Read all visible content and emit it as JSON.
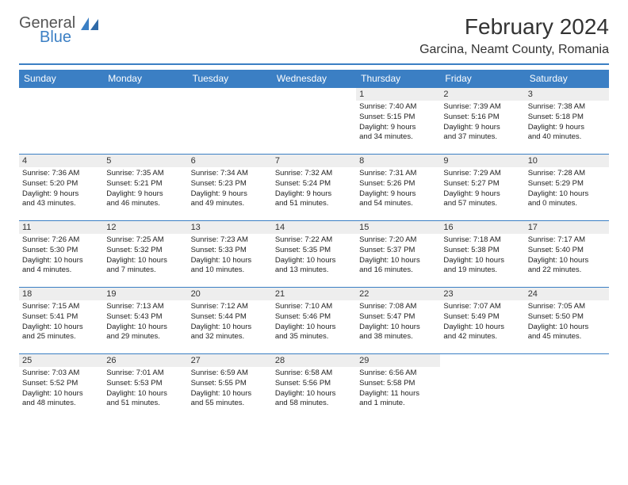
{
  "logo": {
    "line1": "General",
    "line2": "Blue",
    "color_gray": "#555555",
    "color_blue": "#3b7fc4"
  },
  "title": "February 2024",
  "location": "Garcina, Neamt County, Romania",
  "header_bg": "#3b7fc4",
  "daynum_bg": "#eeeeee",
  "weekdays": [
    "Sunday",
    "Monday",
    "Tuesday",
    "Wednesday",
    "Thursday",
    "Friday",
    "Saturday"
  ],
  "weeks": [
    [
      null,
      null,
      null,
      null,
      {
        "n": "1",
        "sr": "Sunrise: 7:40 AM",
        "ss": "Sunset: 5:15 PM",
        "dl1": "Daylight: 9 hours",
        "dl2": "and 34 minutes."
      },
      {
        "n": "2",
        "sr": "Sunrise: 7:39 AM",
        "ss": "Sunset: 5:16 PM",
        "dl1": "Daylight: 9 hours",
        "dl2": "and 37 minutes."
      },
      {
        "n": "3",
        "sr": "Sunrise: 7:38 AM",
        "ss": "Sunset: 5:18 PM",
        "dl1": "Daylight: 9 hours",
        "dl2": "and 40 minutes."
      }
    ],
    [
      {
        "n": "4",
        "sr": "Sunrise: 7:36 AM",
        "ss": "Sunset: 5:20 PM",
        "dl1": "Daylight: 9 hours",
        "dl2": "and 43 minutes."
      },
      {
        "n": "5",
        "sr": "Sunrise: 7:35 AM",
        "ss": "Sunset: 5:21 PM",
        "dl1": "Daylight: 9 hours",
        "dl2": "and 46 minutes."
      },
      {
        "n": "6",
        "sr": "Sunrise: 7:34 AM",
        "ss": "Sunset: 5:23 PM",
        "dl1": "Daylight: 9 hours",
        "dl2": "and 49 minutes."
      },
      {
        "n": "7",
        "sr": "Sunrise: 7:32 AM",
        "ss": "Sunset: 5:24 PM",
        "dl1": "Daylight: 9 hours",
        "dl2": "and 51 minutes."
      },
      {
        "n": "8",
        "sr": "Sunrise: 7:31 AM",
        "ss": "Sunset: 5:26 PM",
        "dl1": "Daylight: 9 hours",
        "dl2": "and 54 minutes."
      },
      {
        "n": "9",
        "sr": "Sunrise: 7:29 AM",
        "ss": "Sunset: 5:27 PM",
        "dl1": "Daylight: 9 hours",
        "dl2": "and 57 minutes."
      },
      {
        "n": "10",
        "sr": "Sunrise: 7:28 AM",
        "ss": "Sunset: 5:29 PM",
        "dl1": "Daylight: 10 hours",
        "dl2": "and 0 minutes."
      }
    ],
    [
      {
        "n": "11",
        "sr": "Sunrise: 7:26 AM",
        "ss": "Sunset: 5:30 PM",
        "dl1": "Daylight: 10 hours",
        "dl2": "and 4 minutes."
      },
      {
        "n": "12",
        "sr": "Sunrise: 7:25 AM",
        "ss": "Sunset: 5:32 PM",
        "dl1": "Daylight: 10 hours",
        "dl2": "and 7 minutes."
      },
      {
        "n": "13",
        "sr": "Sunrise: 7:23 AM",
        "ss": "Sunset: 5:33 PM",
        "dl1": "Daylight: 10 hours",
        "dl2": "and 10 minutes."
      },
      {
        "n": "14",
        "sr": "Sunrise: 7:22 AM",
        "ss": "Sunset: 5:35 PM",
        "dl1": "Daylight: 10 hours",
        "dl2": "and 13 minutes."
      },
      {
        "n": "15",
        "sr": "Sunrise: 7:20 AM",
        "ss": "Sunset: 5:37 PM",
        "dl1": "Daylight: 10 hours",
        "dl2": "and 16 minutes."
      },
      {
        "n": "16",
        "sr": "Sunrise: 7:18 AM",
        "ss": "Sunset: 5:38 PM",
        "dl1": "Daylight: 10 hours",
        "dl2": "and 19 minutes."
      },
      {
        "n": "17",
        "sr": "Sunrise: 7:17 AM",
        "ss": "Sunset: 5:40 PM",
        "dl1": "Daylight: 10 hours",
        "dl2": "and 22 minutes."
      }
    ],
    [
      {
        "n": "18",
        "sr": "Sunrise: 7:15 AM",
        "ss": "Sunset: 5:41 PM",
        "dl1": "Daylight: 10 hours",
        "dl2": "and 25 minutes."
      },
      {
        "n": "19",
        "sr": "Sunrise: 7:13 AM",
        "ss": "Sunset: 5:43 PM",
        "dl1": "Daylight: 10 hours",
        "dl2": "and 29 minutes."
      },
      {
        "n": "20",
        "sr": "Sunrise: 7:12 AM",
        "ss": "Sunset: 5:44 PM",
        "dl1": "Daylight: 10 hours",
        "dl2": "and 32 minutes."
      },
      {
        "n": "21",
        "sr": "Sunrise: 7:10 AM",
        "ss": "Sunset: 5:46 PM",
        "dl1": "Daylight: 10 hours",
        "dl2": "and 35 minutes."
      },
      {
        "n": "22",
        "sr": "Sunrise: 7:08 AM",
        "ss": "Sunset: 5:47 PM",
        "dl1": "Daylight: 10 hours",
        "dl2": "and 38 minutes."
      },
      {
        "n": "23",
        "sr": "Sunrise: 7:07 AM",
        "ss": "Sunset: 5:49 PM",
        "dl1": "Daylight: 10 hours",
        "dl2": "and 42 minutes."
      },
      {
        "n": "24",
        "sr": "Sunrise: 7:05 AM",
        "ss": "Sunset: 5:50 PM",
        "dl1": "Daylight: 10 hours",
        "dl2": "and 45 minutes."
      }
    ],
    [
      {
        "n": "25",
        "sr": "Sunrise: 7:03 AM",
        "ss": "Sunset: 5:52 PM",
        "dl1": "Daylight: 10 hours",
        "dl2": "and 48 minutes."
      },
      {
        "n": "26",
        "sr": "Sunrise: 7:01 AM",
        "ss": "Sunset: 5:53 PM",
        "dl1": "Daylight: 10 hours",
        "dl2": "and 51 minutes."
      },
      {
        "n": "27",
        "sr": "Sunrise: 6:59 AM",
        "ss": "Sunset: 5:55 PM",
        "dl1": "Daylight: 10 hours",
        "dl2": "and 55 minutes."
      },
      {
        "n": "28",
        "sr": "Sunrise: 6:58 AM",
        "ss": "Sunset: 5:56 PM",
        "dl1": "Daylight: 10 hours",
        "dl2": "and 58 minutes."
      },
      {
        "n": "29",
        "sr": "Sunrise: 6:56 AM",
        "ss": "Sunset: 5:58 PM",
        "dl1": "Daylight: 11 hours",
        "dl2": "and 1 minute."
      },
      null,
      null
    ]
  ]
}
